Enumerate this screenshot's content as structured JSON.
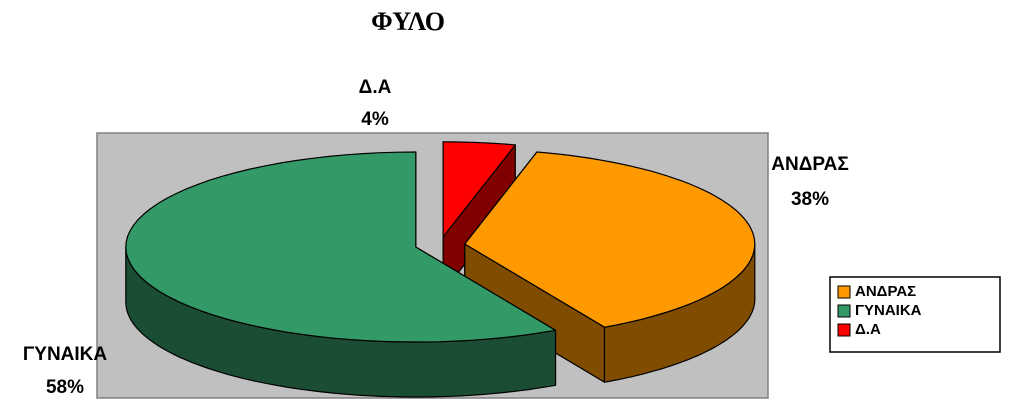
{
  "chart_data": {
    "type": "pie3d",
    "title": "ΦΥΛΟ",
    "categories": [
      "ΑΝΔΡΑΣ",
      "ΓΥΝΑΙΚΑ",
      "Δ.Α"
    ],
    "values": [
      38,
      58,
      4
    ],
    "value_labels": [
      "38%",
      "58%",
      "4%"
    ],
    "colors": [
      "#ff9900",
      "#339966",
      "#ff0000"
    ],
    "legend": "right"
  }
}
